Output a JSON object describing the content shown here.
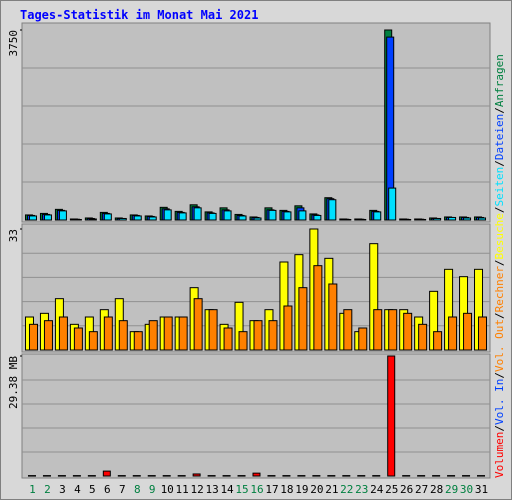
{
  "chart_data": [
    {
      "type": "bar",
      "title": "Tages-Statistik im Monat Mai 2021",
      "categories": [
        "1",
        "2",
        "3",
        "4",
        "5",
        "6",
        "7",
        "8",
        "9",
        "10",
        "11",
        "12",
        "13",
        "14",
        "15",
        "16",
        "17",
        "18",
        "19",
        "20",
        "21",
        "22",
        "23",
        "24",
        "25",
        "26",
        "27",
        "28",
        "29",
        "30",
        "31"
      ],
      "category_colors": [
        "#008040",
        "#008040",
        "#000000",
        "#000000",
        "#000000",
        "#000000",
        "#000000",
        "#008040",
        "#008040",
        "#000000",
        "#000000",
        "#000000",
        "#000000",
        "#000000",
        "#008040",
        "#008040",
        "#000000",
        "#000000",
        "#000000",
        "#000000",
        "#000000",
        "#008040",
        "#008040",
        "#000000",
        "#000000",
        "#000000",
        "#000000",
        "#000000",
        "#008040",
        "#008040",
        "#000000"
      ],
      "legend_separator": "/",
      "ylim": [
        0,
        3750
      ],
      "yticks": [
        3750
      ],
      "grid": true,
      "series": [
        {
          "name": "Anfragen",
          "color": "#008040",
          "values": [
            100,
            130,
            210,
            20,
            40,
            150,
            40,
            100,
            80,
            250,
            170,
            300,
            160,
            240,
            110,
            60,
            240,
            190,
            280,
            120,
            440,
            20,
            20,
            190,
            3750,
            20,
            20,
            40,
            60,
            60,
            60
          ]
        },
        {
          "name": "Dateien",
          "color": "#0040ff",
          "values": [
            90,
            110,
            190,
            15,
            30,
            130,
            30,
            90,
            70,
            220,
            150,
            260,
            140,
            200,
            90,
            50,
            200,
            170,
            240,
            100,
            420,
            15,
            15,
            170,
            3610,
            15,
            15,
            30,
            50,
            50,
            50
          ]
        },
        {
          "name": "Seiten",
          "color": "#00e0ff",
          "values": [
            80,
            100,
            180,
            10,
            20,
            120,
            30,
            80,
            60,
            200,
            140,
            240,
            130,
            180,
            80,
            40,
            190,
            160,
            180,
            90,
            400,
            10,
            10,
            160,
            630,
            10,
            10,
            30,
            50,
            40,
            40
          ]
        }
      ]
    },
    {
      "type": "bar",
      "ylim": [
        0,
        33
      ],
      "yticks": [
        33
      ],
      "grid": true,
      "series": [
        {
          "name": "Besuche",
          "color": "#ffff00",
          "values": [
            9,
            10,
            14,
            7,
            9,
            11,
            14,
            5,
            7,
            9,
            9,
            17,
            11,
            7,
            13,
            8,
            11,
            24,
            26,
            33,
            25,
            10,
            5,
            29,
            11,
            11,
            9,
            16,
            22,
            20,
            22
          ]
        },
        {
          "name": "Rechner",
          "color": "#ff8000",
          "values": [
            7,
            8,
            9,
            6,
            5,
            9,
            8,
            5,
            8,
            9,
            9,
            14,
            11,
            6,
            5,
            8,
            8,
            12,
            17,
            23,
            18,
            11,
            6,
            11,
            11,
            10,
            7,
            5,
            9,
            10,
            9
          ]
        }
      ]
    },
    {
      "type": "bar",
      "ylim": [
        0,
        29.38
      ],
      "yticks": [
        {
          "value": 29.38,
          "label": "29.38 MB"
        }
      ],
      "grid": true,
      "series": [
        {
          "name": "Volumen",
          "color": "#ff0000",
          "values": [
            0.1,
            0.1,
            0.1,
            0.1,
            0.1,
            1.2,
            0.1,
            0.1,
            0.1,
            0.1,
            0.1,
            0.5,
            0.1,
            0.1,
            0.1,
            0.7,
            0.1,
            0.1,
            0.1,
            0.1,
            0.1,
            0.1,
            0.1,
            0.1,
            29.38,
            0.1,
            0.1,
            0.1,
            0.1,
            0.1,
            0.1
          ]
        }
      ],
      "legend_only": [
        {
          "name": "Vol. In",
          "color": "#0040ff"
        },
        {
          "name": "Vol. Out",
          "color": "#ff8000"
        }
      ]
    }
  ]
}
